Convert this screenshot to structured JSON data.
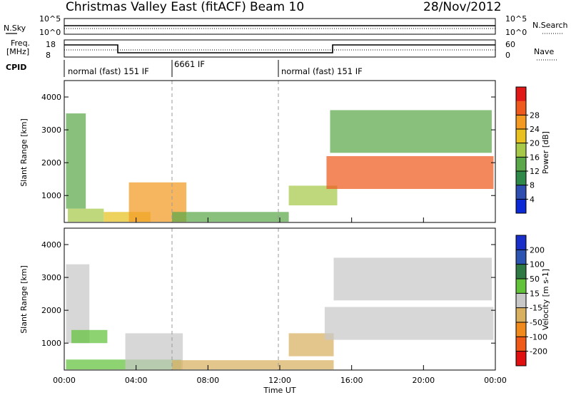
{
  "header": {
    "title": "Christmas Valley East (fitACF)",
    "beam": "Beam 10",
    "date": "28/Nov/2012"
  },
  "strip_labels": {
    "nsky": "N.Sky",
    "nsearch": "N.Search",
    "freq": "Freq.",
    "freq_unit": "[MHz]",
    "nave": "Nave",
    "cpid": "CPID",
    "left_top_ticks": [
      "10^5",
      "10^0"
    ],
    "right_top_ticks": [
      "10^5",
      "10^0"
    ],
    "freq_ticks": [
      "18",
      "8"
    ],
    "nave_ticks": [
      "60",
      "0"
    ]
  },
  "cpid_segments": [
    {
      "label": "normal (fast) 151 IF",
      "start": 0
    },
    {
      "label": "6661 IF",
      "start": 6
    },
    {
      "label": "normal (fast) 151 IF",
      "start": 12
    }
  ],
  "axes": {
    "ylabel": "Slant Range [km]",
    "xlabel": "Time UT",
    "y_ticks": [
      "1000",
      "2000",
      "3000",
      "4000"
    ],
    "x_ticks": [
      "00:00",
      "04:00",
      "08:00",
      "12:00",
      "16:00",
      "20:00",
      "00:00"
    ]
  },
  "colorbars": {
    "power": {
      "label": "Power [dB]",
      "ticks": [
        "4",
        "8",
        "12",
        "16",
        "20",
        "24",
        "28"
      ],
      "colors": [
        "#0b2ad6",
        "#2e4fb0",
        "#2f8a4a",
        "#5aa84a",
        "#a6c94a",
        "#e8c020",
        "#f29a22",
        "#ee5a1e",
        "#e01818"
      ]
    },
    "velocity": {
      "label": "Velocity [m s-1]",
      "ticks": [
        "200",
        "100",
        "50",
        "15",
        "-15",
        "-50",
        "-100",
        "-200"
      ],
      "colors": [
        "#1a2fc8",
        "#2c55b2",
        "#2f7a44",
        "#62c23a",
        "#c8c8c8",
        "#d8b060",
        "#f08a1c",
        "#f05a18",
        "#e01010"
      ]
    }
  },
  "chart_data": [
    {
      "type": "heatmap",
      "title": "Power",
      "xlabel": "Time UT",
      "ylabel": "Slant Range [km]",
      "xlim": [
        0,
        24
      ],
      "ylim": [
        180,
        4500
      ],
      "zlim": [
        0,
        30
      ],
      "regions": [
        {
          "t0": 0.1,
          "t1": 1.2,
          "r0": 600,
          "r1": 3500,
          "z": 10
        },
        {
          "t0": 0.2,
          "t1": 2.2,
          "r0": 200,
          "r1": 600,
          "z": 14
        },
        {
          "t0": 2.2,
          "t1": 4.8,
          "r0": 200,
          "r1": 500,
          "z": 20
        },
        {
          "t0": 3.6,
          "t1": 6.8,
          "r0": 200,
          "r1": 1400,
          "z": 22
        },
        {
          "t0": 6.0,
          "t1": 12.5,
          "r0": 200,
          "r1": 500,
          "z": 12
        },
        {
          "t0": 12.5,
          "t1": 15.2,
          "r0": 700,
          "r1": 1300,
          "z": 16
        },
        {
          "t0": 14.6,
          "t1": 23.9,
          "r0": 1200,
          "r1": 2200,
          "z": 26
        },
        {
          "t0": 14.8,
          "t1": 23.8,
          "r0": 2300,
          "r1": 3600,
          "z": 12
        }
      ]
    },
    {
      "type": "heatmap",
      "title": "Velocity",
      "xlabel": "Time UT",
      "ylabel": "Slant Range [km]",
      "xlim": [
        0,
        24
      ],
      "ylim": [
        180,
        4500
      ],
      "zlim": [
        -200,
        200
      ],
      "regions": [
        {
          "t0": 0.1,
          "t1": 1.4,
          "r0": 1000,
          "r1": 3400,
          "z": 0
        },
        {
          "t0": 0.4,
          "t1": 2.4,
          "r0": 1000,
          "r1": 1400,
          "z": 40
        },
        {
          "t0": 0.1,
          "t1": 6.5,
          "r0": 200,
          "r1": 500,
          "z": 30
        },
        {
          "t0": 3.4,
          "t1": 6.6,
          "r0": 200,
          "r1": 1300,
          "z": 0
        },
        {
          "t0": 6.0,
          "t1": 15.0,
          "r0": 200,
          "r1": 480,
          "z": -60
        },
        {
          "t0": 12.5,
          "t1": 15.0,
          "r0": 600,
          "r1": 1300,
          "z": -45
        },
        {
          "t0": 14.5,
          "t1": 23.9,
          "r0": 1100,
          "r1": 2100,
          "z": 0
        },
        {
          "t0": 15.0,
          "t1": 23.8,
          "r0": 2300,
          "r1": 3600,
          "z": 0
        }
      ]
    }
  ]
}
